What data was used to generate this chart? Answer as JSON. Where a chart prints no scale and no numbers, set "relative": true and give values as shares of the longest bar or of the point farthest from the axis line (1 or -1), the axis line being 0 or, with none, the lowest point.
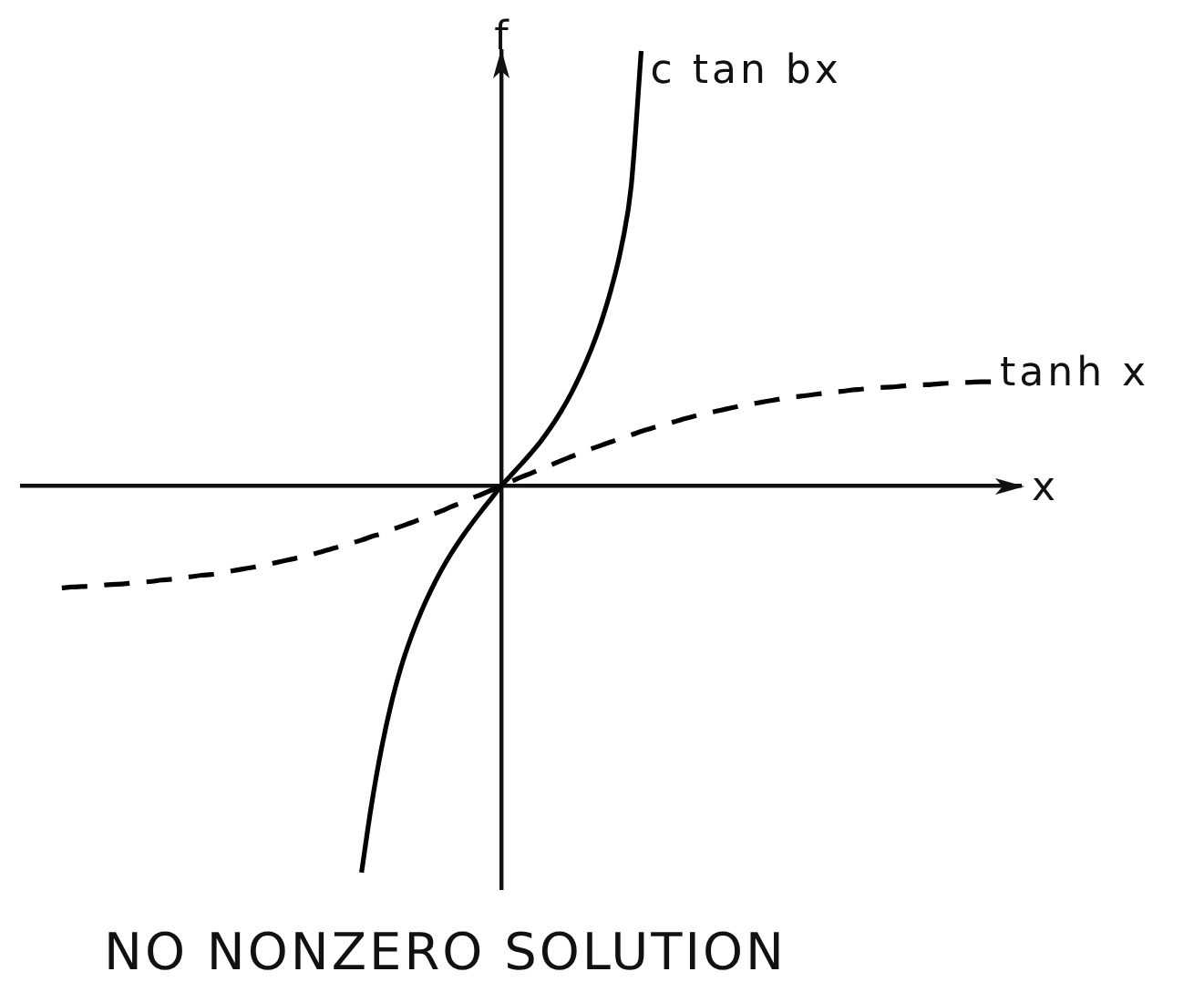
{
  "chart_data": {
    "type": "line",
    "title": "NO NONZERO SOLUTION",
    "xlabel": "x",
    "ylabel": "f",
    "relative": true,
    "categories": [
      null,
      null,
      null,
      null,
      null,
      null,
      null,
      null,
      null,
      null,
      null,
      null,
      null,
      null,
      null,
      null,
      null,
      null,
      null,
      null,
      null,
      null,
      null,
      null,
      null,
      null,
      null,
      null,
      null,
      null,
      null,
      null,
      null,
      null,
      null,
      null,
      null,
      null,
      null,
      null,
      null,
      null,
      null,
      null,
      null,
      null,
      null,
      null,
      null,
      null,
      null,
      null,
      null,
      null,
      null,
      null,
      null,
      null,
      null,
      null,
      null,
      null,
      null,
      null,
      null,
      null,
      null,
      null,
      null,
      null,
      null,
      null,
      null,
      null,
      null,
      null,
      null,
      null,
      null,
      null,
      null,
      null,
      null,
      null,
      null,
      null,
      null,
      null,
      null,
      null,
      null,
      null,
      null,
      null,
      null,
      null,
      null,
      null,
      null,
      null,
      null
    ],
    "series": [
      {
        "name": "c tan bx",
        "color": "#000000",
        "values": [
          null,
          null,
          null,
          null,
          null,
          null,
          null,
          null,
          null,
          null,
          null,
          null,
          null,
          null,
          null,
          null,
          null,
          null,
          null,
          null,
          null,
          null,
          null,
          null,
          null,
          null,
          null,
          null,
          null,
          null,
          null,
          null,
          null,
          null,
          -0.89,
          -0.734,
          -0.604,
          -0.499,
          -0.414,
          -0.346,
          -0.288,
          -0.238,
          -0.194,
          -0.155,
          -0.12,
          -0.088,
          -0.058,
          -0.029,
          0,
          0.025,
          0.05,
          0.076,
          0.104,
          0.136,
          0.172,
          0.213,
          0.26,
          0.314,
          0.377,
          0.453,
          0.548,
          0.69,
          1,
          null,
          null,
          null,
          null,
          null,
          null,
          null,
          null,
          null,
          null,
          null,
          null,
          null,
          null,
          null,
          null,
          null,
          null,
          null,
          null,
          null,
          null,
          null,
          null,
          null,
          null,
          null,
          null,
          null,
          null,
          null,
          null,
          null,
          null,
          null,
          null,
          null,
          null
        ]
      },
      {
        "name": "tanh x",
        "color": "#000000",
        "line_style": "dashed",
        "values": [
          null,
          null,
          null,
          null,
          -0.235,
          -0.233,
          -0.232,
          -0.231,
          -0.229,
          -0.227,
          -0.226,
          -0.224,
          -0.222,
          -0.22,
          -0.217,
          -0.215,
          -0.212,
          -0.209,
          -0.206,
          -0.204,
          -0.2,
          -0.196,
          -0.192,
          -0.188,
          -0.184,
          -0.179,
          -0.174,
          -0.169,
          -0.164,
          -0.158,
          -0.152,
          -0.145,
          -0.139,
          -0.132,
          -0.125,
          -0.117,
          -0.11,
          -0.101,
          -0.093,
          -0.085,
          -0.076,
          -0.067,
          -0.058,
          -0.048,
          -0.039,
          -0.029,
          -0.02,
          -0.01,
          0,
          0.01,
          0.02,
          0.029,
          0.039,
          0.048,
          0.058,
          0.067,
          0.076,
          0.085,
          0.093,
          0.101,
          0.11,
          0.117,
          0.125,
          0.132,
          0.139,
          0.145,
          0.152,
          0.158,
          0.164,
          0.169,
          0.174,
          0.179,
          0.184,
          0.188,
          0.192,
          0.196,
          0.2,
          0.204,
          0.206,
          0.209,
          0.212,
          0.215,
          0.217,
          0.22,
          0.222,
          0.224,
          0.226,
          0.227,
          0.229,
          0.231,
          0.232,
          0.233,
          0.235,
          0.236,
          0.237,
          0.238,
          0.239,
          0.239,
          null,
          null,
          null
        ]
      }
    ]
  }
}
